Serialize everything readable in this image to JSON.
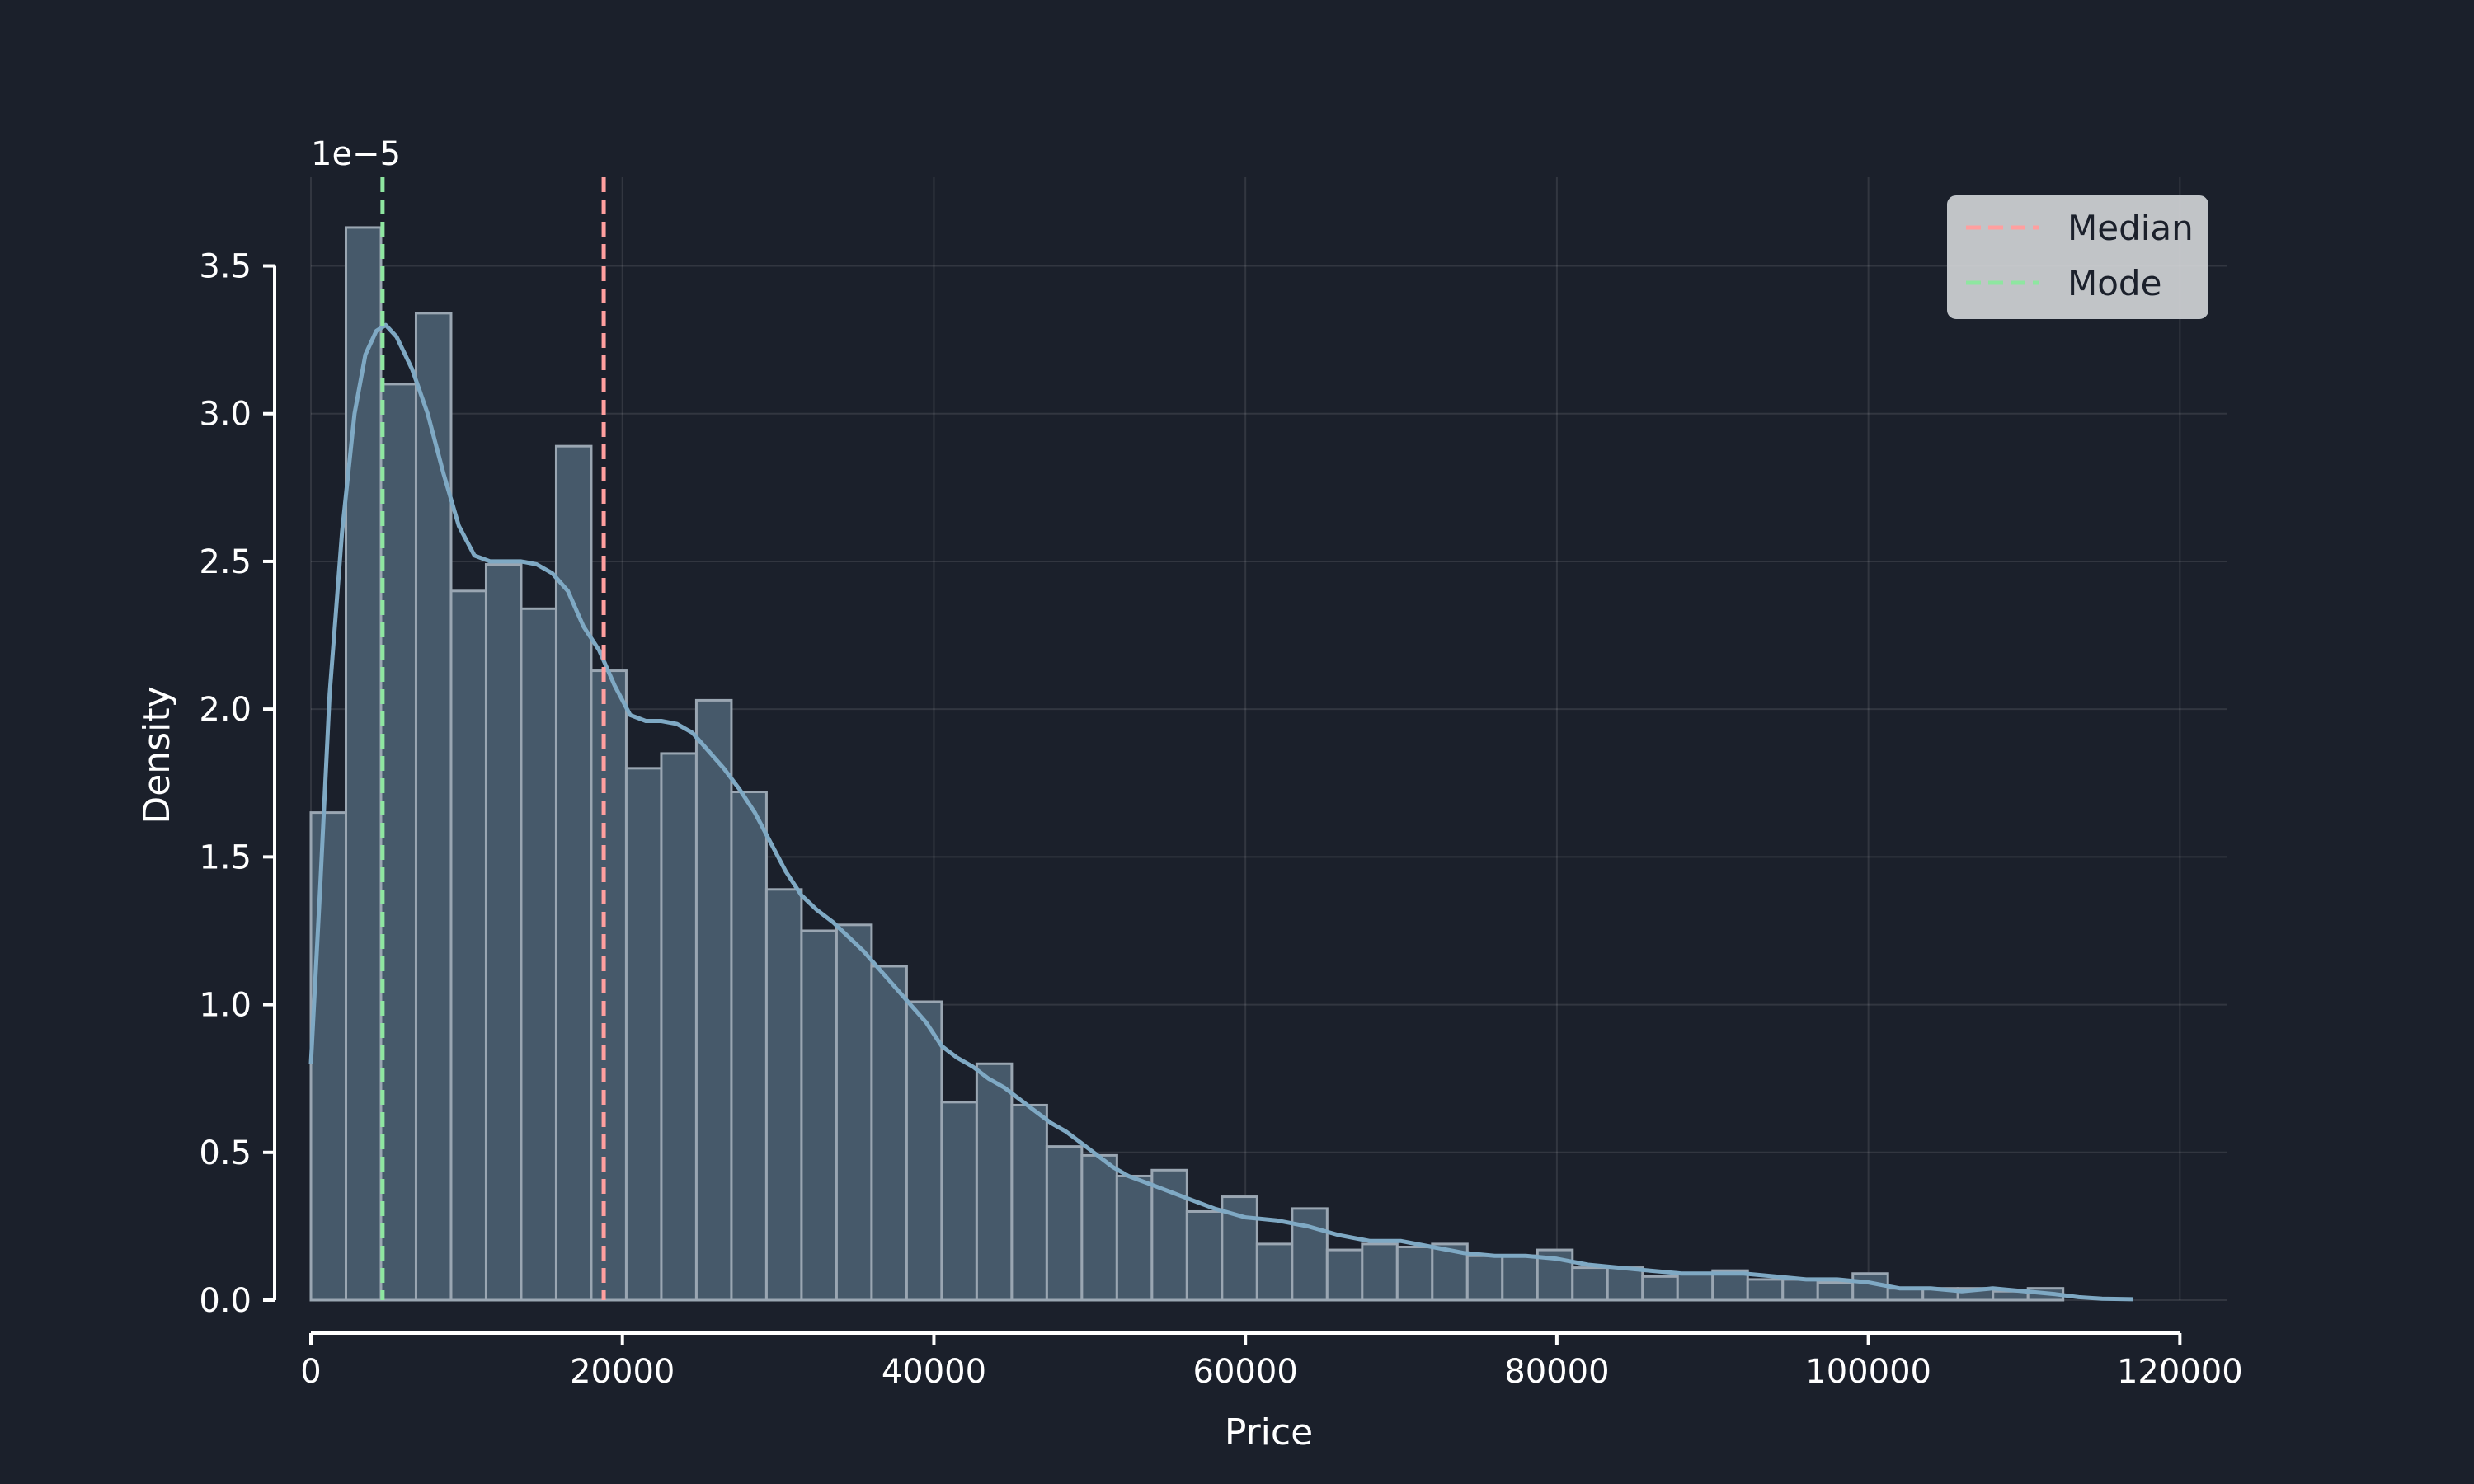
{
  "chart_data": {
    "type": "bar",
    "subtype": "histogram with density curve",
    "xlabel": "Price",
    "ylabel": "Density",
    "y_offset_label": "1e−5",
    "xlim": [
      0,
      123000
    ],
    "ylim": [
      0,
      3.8
    ],
    "x_ticks": [
      0,
      20000,
      40000,
      60000,
      80000,
      100000,
      120000
    ],
    "x_tick_labels": [
      "0",
      "20000",
      "40000",
      "60000",
      "80000",
      "100000",
      "120000"
    ],
    "y_ticks": [
      0,
      0.5,
      1.0,
      1.5,
      2.0,
      2.5,
      3.0,
      3.5
    ],
    "y_tick_labels": [
      "0.0",
      "0.5",
      "1.0",
      "1.5",
      "2.0",
      "2.5",
      "3.0",
      "3.5"
    ],
    "grid": true,
    "bin_start": 0,
    "bin_width": 2250,
    "values": [
      1.65,
      3.63,
      3.1,
      3.34,
      2.4,
      2.49,
      2.34,
      2.89,
      2.13,
      1.8,
      1.85,
      2.03,
      1.72,
      1.39,
      1.25,
      1.27,
      1.13,
      1.01,
      0.67,
      0.8,
      0.66,
      0.52,
      0.49,
      0.42,
      0.44,
      0.3,
      0.35,
      0.19,
      0.31,
      0.17,
      0.19,
      0.18,
      0.19,
      0.15,
      0.15,
      0.17,
      0.11,
      0.11,
      0.08,
      0.09,
      0.1,
      0.07,
      0.07,
      0.06,
      0.09,
      0.04,
      0.04,
      0.04,
      0.03,
      0.04
    ],
    "kde": {
      "x": [
        0,
        600,
        1200,
        2000,
        2800,
        3500,
        4200,
        4800,
        5500,
        6500,
        7500,
        8500,
        9500,
        10500,
        11500,
        12500,
        13500,
        14500,
        15500,
        16500,
        17500,
        18500,
        19500,
        20500,
        21500,
        22500,
        23500,
        24500,
        25500,
        26500,
        27500,
        28500,
        29500,
        30500,
        31500,
        32500,
        33500,
        34500,
        35500,
        36500,
        37500,
        38500,
        39500,
        40500,
        41500,
        42500,
        43500,
        44500,
        45500,
        46500,
        47500,
        48500,
        49500,
        50500,
        51500,
        52500,
        54000,
        56000,
        58000,
        60000,
        62000,
        64000,
        66000,
        68000,
        70000,
        72000,
        74000,
        76000,
        78000,
        80000,
        82000,
        84000,
        86000,
        88000,
        90000,
        92000,
        94000,
        96000,
        98000,
        100000,
        102000,
        104000,
        106000,
        108000,
        110000,
        112000,
        113500,
        115000,
        117000
      ],
      "y": [
        0.8,
        1.4,
        2.05,
        2.6,
        3.0,
        3.2,
        3.28,
        3.3,
        3.26,
        3.15,
        3.0,
        2.8,
        2.62,
        2.52,
        2.5,
        2.5,
        2.5,
        2.49,
        2.46,
        2.4,
        2.28,
        2.2,
        2.08,
        1.98,
        1.96,
        1.96,
        1.95,
        1.92,
        1.86,
        1.8,
        1.73,
        1.65,
        1.55,
        1.45,
        1.37,
        1.32,
        1.28,
        1.23,
        1.18,
        1.12,
        1.06,
        1.0,
        0.94,
        0.86,
        0.82,
        0.79,
        0.75,
        0.72,
        0.68,
        0.64,
        0.6,
        0.57,
        0.53,
        0.49,
        0.45,
        0.42,
        0.39,
        0.35,
        0.31,
        0.28,
        0.27,
        0.25,
        0.22,
        0.2,
        0.2,
        0.18,
        0.16,
        0.15,
        0.15,
        0.14,
        0.12,
        0.11,
        0.1,
        0.09,
        0.09,
        0.09,
        0.08,
        0.07,
        0.07,
        0.06,
        0.04,
        0.04,
        0.03,
        0.04,
        0.03,
        0.02,
        0.01,
        0.005,
        0.003
      ]
    },
    "reference_lines": [
      {
        "name": "Median",
        "x": 18800,
        "color": "#ff9f9f"
      },
      {
        "name": "Mode",
        "x": 4600,
        "color": "#8ee6a0"
      }
    ],
    "legend_position": "top-right",
    "colors": {
      "background": "#1b202b",
      "bar_fill": "#46596a",
      "bar_edge": "#9aa6b2",
      "kde_line": "#7fa9c4",
      "axis": "#ffffff",
      "legend_bg": "#d4d6d8"
    }
  }
}
